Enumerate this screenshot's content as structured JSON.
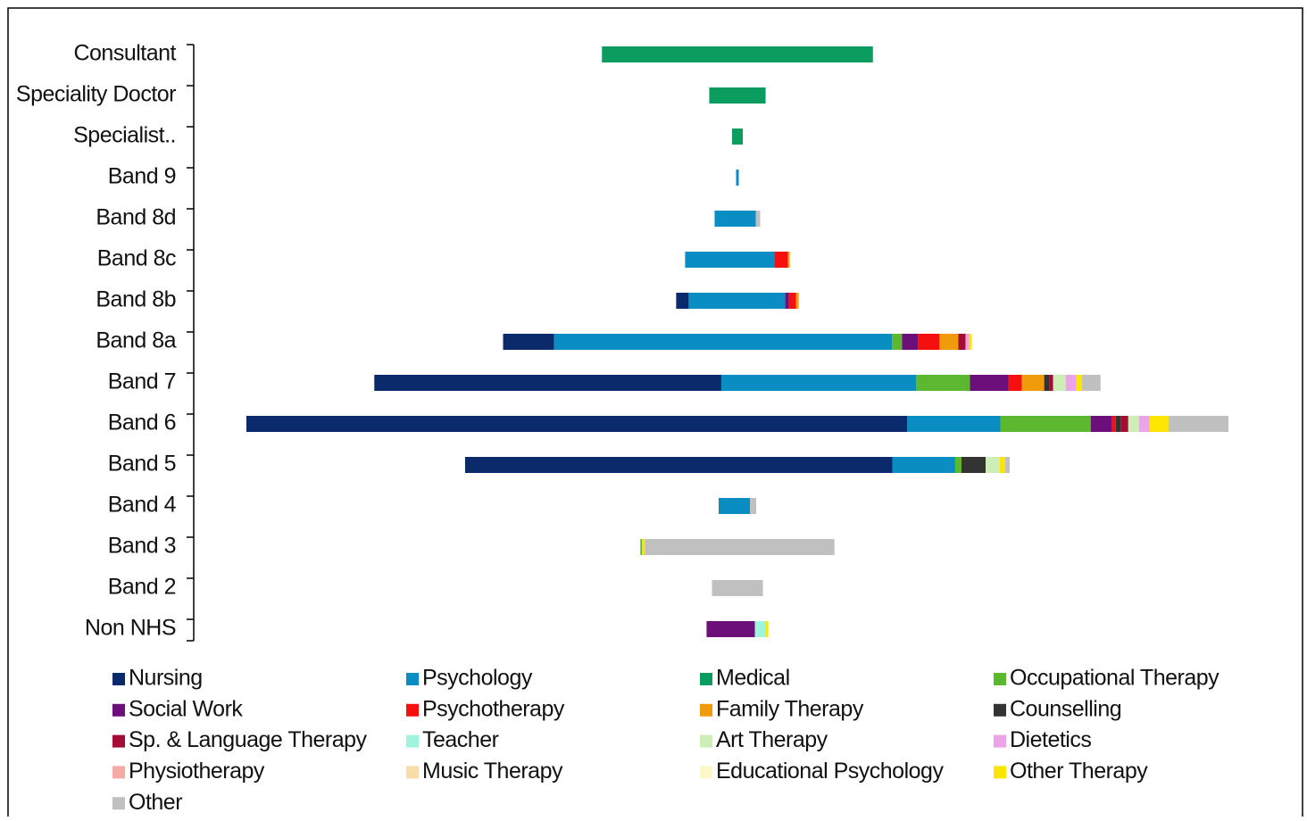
{
  "chart_data": {
    "type": "centered-stacked-bar",
    "categories": [
      "Consultant",
      "Speciality Doctor",
      "Specialist..",
      "Band 9",
      "Band 8d",
      "Band 8c",
      "Band 8b",
      "Band 8a",
      "Band 7",
      "Band 6",
      "Band 5",
      "Band 4",
      "Band 3",
      "Band 2",
      "Non NHS"
    ],
    "series": [
      {
        "name": "Nursing",
        "color": "#0b2a6b",
        "values": [
          0,
          0,
          0,
          0,
          0,
          0,
          14,
          57,
          388,
          739,
          478,
          0,
          0,
          0,
          0
        ]
      },
      {
        "name": "Psychology",
        "color": "#0a8dc2",
        "values": [
          0,
          0,
          0,
          3,
          46,
          100,
          108,
          378,
          218,
          104,
          70,
          35,
          0,
          0,
          0
        ]
      },
      {
        "name": "Medical",
        "color": "#0a9d5f",
        "values": [
          303,
          63,
          12,
          0,
          0,
          0,
          0,
          0,
          0,
          0,
          0,
          0,
          0,
          0,
          0
        ]
      },
      {
        "name": "Occupational Therapy",
        "color": "#5cb82e",
        "values": [
          0,
          0,
          0,
          0,
          0,
          0,
          0,
          11,
          60,
          101,
          7,
          0,
          2,
          0,
          0
        ]
      },
      {
        "name": "Social Work",
        "color": "#6d0f7a",
        "values": [
          0,
          0,
          0,
          0,
          0,
          0,
          4,
          18,
          43,
          24,
          0,
          0,
          0,
          0,
          54
        ]
      },
      {
        "name": "Psychotherapy",
        "color": "#f50f0f",
        "values": [
          0,
          0,
          0,
          0,
          0,
          15,
          8,
          24,
          15,
          4,
          0,
          0,
          0,
          0,
          0
        ]
      },
      {
        "name": "Family Therapy",
        "color": "#f19a0b",
        "values": [
          0,
          0,
          0,
          0,
          0,
          2,
          3,
          21,
          25,
          0,
          0,
          0,
          0,
          0,
          0
        ]
      },
      {
        "name": "Counselling",
        "color": "#333333",
        "values": [
          0,
          0,
          0,
          0,
          0,
          0,
          0,
          0,
          6,
          6,
          27,
          0,
          0,
          0,
          0
        ]
      },
      {
        "name": "Sp. & Language Therapy",
        "color": "#a50c35",
        "values": [
          0,
          0,
          0,
          0,
          0,
          0,
          0,
          8,
          4,
          8,
          0,
          0,
          0,
          0,
          0
        ]
      },
      {
        "name": "Teacher",
        "color": "#9ff4dc",
        "values": [
          0,
          0,
          0,
          0,
          0,
          0,
          0,
          0,
          0,
          0,
          0,
          0,
          0,
          0,
          12
        ]
      },
      {
        "name": "Art Therapy",
        "color": "#cdeeb7",
        "values": [
          0,
          0,
          0,
          0,
          0,
          0,
          0,
          0,
          14,
          12,
          16,
          0,
          0,
          0,
          0
        ]
      },
      {
        "name": "Dietetics",
        "color": "#eba4ea",
        "values": [
          0,
          0,
          0,
          0,
          0,
          0,
          0,
          4,
          12,
          12,
          0,
          0,
          0,
          0,
          0
        ]
      },
      {
        "name": "Physiotherapy",
        "color": "#f5aba5",
        "values": [
          0,
          0,
          0,
          0,
          0,
          0,
          0,
          0,
          0,
          0,
          0,
          0,
          0,
          0,
          0
        ]
      },
      {
        "name": "Music Therapy",
        "color": "#f8dcaa",
        "values": [
          0,
          0,
          0,
          0,
          0,
          0,
          0,
          0,
          0,
          0,
          0,
          0,
          0,
          0,
          0
        ]
      },
      {
        "name": "Educational Psychology",
        "color": "#fdf8c8",
        "values": [
          0,
          0,
          0,
          0,
          0,
          0,
          0,
          0,
          0,
          0,
          0,
          0,
          0,
          0,
          0
        ]
      },
      {
        "name": "Other Therapy",
        "color": "#ffe600",
        "values": [
          0,
          0,
          0,
          0,
          0,
          0,
          0,
          3,
          6,
          21,
          6,
          0,
          3,
          0,
          3
        ]
      },
      {
        "name": "Other",
        "color": "#c0c0c0",
        "values": [
          0,
          0,
          0,
          0,
          5,
          0,
          0,
          0,
          21,
          67,
          5,
          7,
          212,
          57,
          0
        ]
      }
    ]
  }
}
